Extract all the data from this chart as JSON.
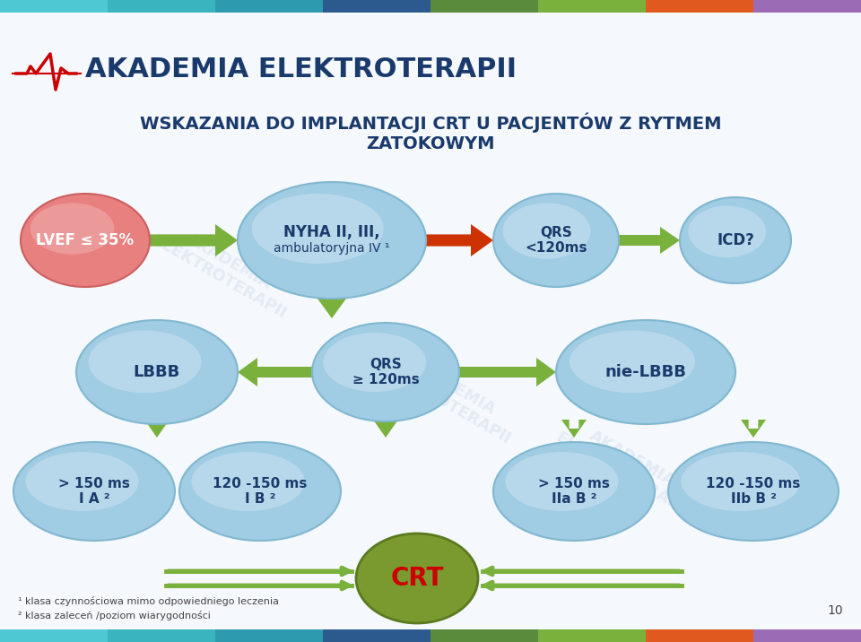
{
  "title": "WSKAZANIA DO IMPLANTACJI CRT U PACJENTÓW Z RYTMEM\nZATOKOWYM",
  "title_color": "#1a3a6b",
  "bg_color": "#f5f8fc",
  "header_colors": [
    "#4ec9d4",
    "#3ab5c0",
    "#2e9ab0",
    "#2d5a8e",
    "#5a8a3c",
    "#7ab03c",
    "#e05a20",
    "#9b6bb5"
  ],
  "logo_text": "AKADEMIA ELEKTROTERAPII",
  "logo_color": "#1a3a6b",
  "node_fill_top": "#b8ddf0",
  "node_fill_round": "#a0cce4",
  "node_stroke": "#80b8d0",
  "node_text_color": "#1a3a6b",
  "lvef_fill": "#e88080",
  "crt_fill": "#7a9a30",
  "crt_text_color": "#cc0000",
  "arrow_green": "#7ab03c",
  "arrow_red": "#cc3300",
  "footnote1": "¹ klasa czynnościowa mimo odpowiedniego leczenia",
  "footnote2": "² klasa zaleceń /poziom wiarygodności",
  "page_number": "10"
}
